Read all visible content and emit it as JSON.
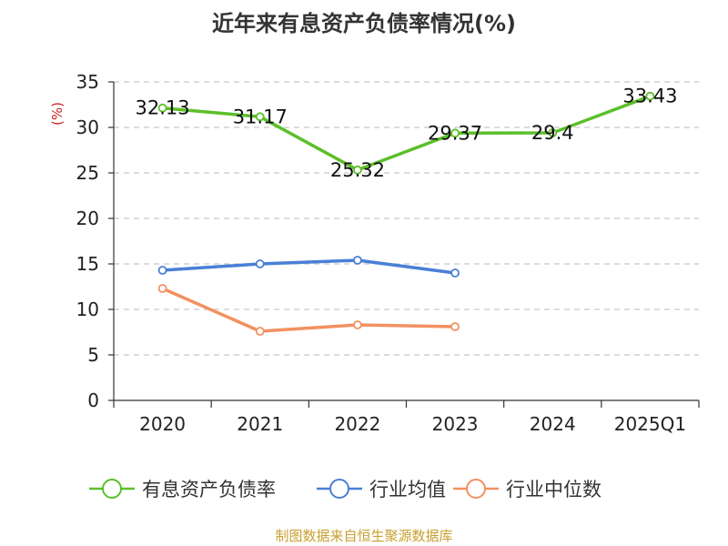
{
  "title": "近年来有息资产负债率情况(%)",
  "source": "制图数据来自恒生聚源数据库",
  "chart_data": {
    "type": "line",
    "title": "近年来有息资产负债率情况(%)",
    "ylabel": "(%)",
    "ylim": [
      0,
      35
    ],
    "yticks": [
      0,
      5,
      10,
      15,
      20,
      25,
      30,
      35
    ],
    "categories": [
      "2020",
      "2021",
      "2022",
      "2023",
      "2024",
      "2025Q1"
    ],
    "grid": true,
    "legend_position": "bottom",
    "series": [
      {
        "name": "有息资产负债率",
        "color": "#5cbf2a",
        "values": [
          32.13,
          31.17,
          25.32,
          29.37,
          29.4,
          33.43
        ],
        "labels": [
          "32.13",
          "31.17",
          "25.32",
          "29.37",
          "29.4",
          "33.43"
        ],
        "show_labels": true
      },
      {
        "name": "行业均值",
        "color": "#4a7fd6",
        "values": [
          14.3,
          15.0,
          15.4,
          14.0,
          null,
          null
        ],
        "show_labels": false
      },
      {
        "name": "行业中位数",
        "color": "#f39060",
        "values": [
          12.3,
          7.6,
          8.3,
          8.1,
          null,
          null
        ],
        "show_labels": false
      }
    ]
  }
}
